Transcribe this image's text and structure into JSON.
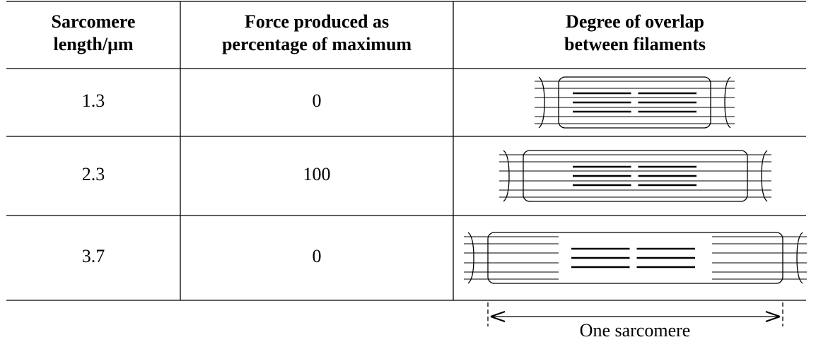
{
  "table": {
    "header": [
      [
        "Sarcomere",
        "length/μm"
      ],
      [
        "Force produced as",
        "percentage of maximum"
      ],
      [
        "Degree of overlap",
        "between filaments"
      ]
    ],
    "rows": [
      [
        1.3,
        0
      ],
      [
        2.3,
        100
      ],
      [
        3.7,
        0
      ]
    ]
  },
  "caption": "One sarcomere"
}
